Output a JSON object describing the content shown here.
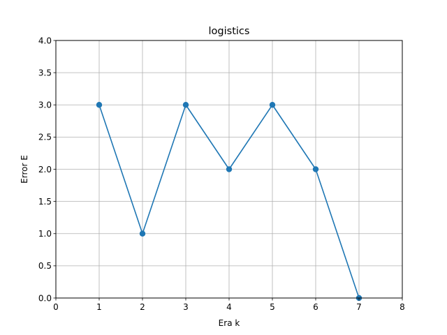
{
  "chart_data": {
    "type": "line",
    "title": "logistics",
    "xlabel": "Era  k",
    "ylabel": "Error  E",
    "x": [
      1,
      2,
      3,
      4,
      5,
      6,
      7
    ],
    "series": [
      {
        "values": [
          3.0,
          1.0,
          3.0,
          2.0,
          3.0,
          2.0,
          0.0
        ],
        "color": "#1f77b4",
        "marker": "circle"
      }
    ],
    "xlim": [
      0,
      8
    ],
    "ylim": [
      0,
      4
    ],
    "xticks": [
      0,
      1,
      2,
      3,
      4,
      5,
      6,
      7,
      8
    ],
    "xtick_labels": [
      "0",
      "1",
      "2",
      "3",
      "4",
      "5",
      "6",
      "7",
      "8"
    ],
    "yticks": [
      0,
      0.5,
      1,
      1.5,
      2,
      2.5,
      3,
      3.5,
      4
    ],
    "ytick_labels": [
      "0.0",
      "0.5",
      "1.0",
      "1.5",
      "2.0",
      "2.5",
      "3.0",
      "3.5",
      "4.0"
    ],
    "grid": true,
    "grid_color": "#b0b0b0"
  }
}
